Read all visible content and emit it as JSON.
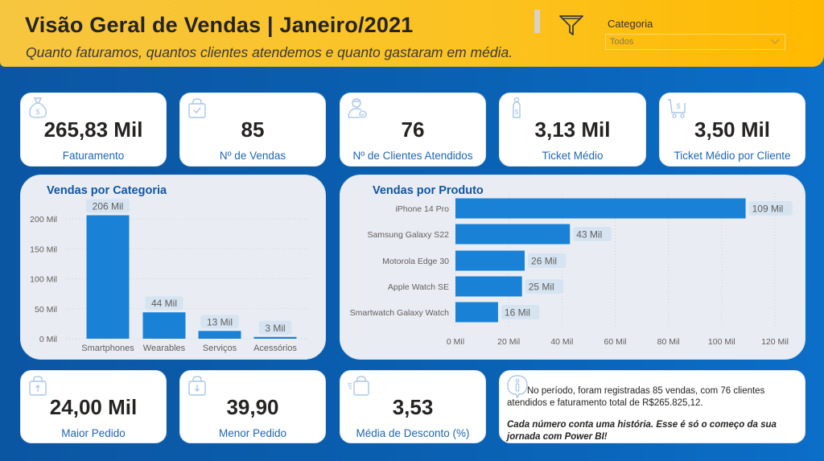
{
  "header": {
    "title": "Visão Geral de Vendas | Janeiro/2021",
    "subtitle": "Quanto faturamos, quantos clientes atendemos e quanto gastaram em média.",
    "filter_icon": "funnel-icon",
    "slicer": {
      "label": "Categoria",
      "value": "Todos",
      "icon": "chevron-down-icon"
    }
  },
  "colors": {
    "accent": "#1a82d6",
    "header": "#fbc21f",
    "background": "#0a5fb0",
    "label_blue": "#1f66b0"
  },
  "kpis_top": [
    {
      "value": "265,83 Mil",
      "label": "Faturamento",
      "icon": "money-bag-icon"
    },
    {
      "value": "85",
      "label": "Nº de Vendas",
      "icon": "shopping-bag-check-icon"
    },
    {
      "value": "76",
      "label": "Nº de Clientes Atendidos",
      "icon": "user-check-icon"
    },
    {
      "value": "3,13 Mil",
      "label": "Ticket Médio",
      "icon": "price-tag-icon"
    },
    {
      "value": "3,50 Mil",
      "label": "Ticket Médio por Cliente",
      "icon": "cart-dollar-icon"
    }
  ],
  "kpis_bottom": [
    {
      "value": "24,00 Mil",
      "label": "Maior Pedido",
      "icon": "bag-arrow-up-icon"
    },
    {
      "value": "39,90",
      "label": "Menor Pedido",
      "icon": "bag-arrow-down-icon"
    },
    {
      "value": "3,53",
      "label": "Média de Desconto (%)",
      "icon": "bag-fast-icon"
    }
  ],
  "info": {
    "icon": "info-bubble-icon",
    "text1": "No período, foram registradas 85 vendas, com 76 clientes atendidos e faturamento total de R$265.825,12.",
    "text2": "Cada número conta uma história. Esse é só o começo da sua jornada com Power BI!"
  },
  "chart_data": [
    {
      "type": "bar",
      "title": "Vendas por Categoria",
      "categories": [
        "Smartphones",
        "Wearables",
        "Serviços",
        "Acessórios"
      ],
      "values": [
        206,
        44,
        13,
        3
      ],
      "data_labels": [
        "206 Mil",
        "44 Mil",
        "13 Mil",
        "3 Mil"
      ],
      "yticks": [
        0,
        50,
        100,
        150,
        200
      ],
      "ytick_labels": [
        "0 Mil",
        "50 Mil",
        "100 Mil",
        "150 Mil",
        "200 Mil"
      ],
      "ylim": [
        0,
        200
      ],
      "unit": "Mil",
      "grid": true
    },
    {
      "type": "bar",
      "orientation": "horizontal",
      "title": "Vendas por Produto",
      "categories": [
        "iPhone 14 Pro",
        "Samsung Galaxy S22",
        "Motorola Edge 30",
        "Apple Watch SE",
        "Smartwatch Galaxy Watch"
      ],
      "values": [
        109,
        43,
        26,
        25,
        16
      ],
      "data_labels": [
        "109 Mil",
        "43 Mil",
        "26 Mil",
        "25 Mil",
        "16 Mil"
      ],
      "xticks": [
        0,
        20,
        40,
        60,
        80,
        100,
        120
      ],
      "xtick_labels": [
        "0 Mil",
        "20 Mil",
        "40 Mil",
        "60 Mil",
        "80 Mil",
        "100 Mil",
        "120 Mil"
      ],
      "xlim": [
        0,
        120
      ],
      "unit": "Mil",
      "grid": true
    }
  ]
}
